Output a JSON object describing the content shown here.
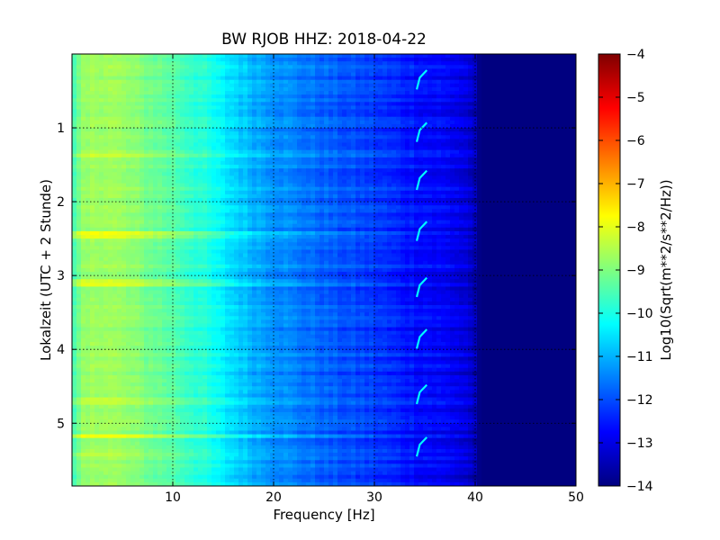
{
  "chart_data": {
    "type": "heatmap",
    "title": "BW RJOB HHZ: 2018-04-22",
    "xlabel": "Frequency [Hz]",
    "ylabel": "Lokalzeit (UTC + 2 Stunde)",
    "xlim": [
      0,
      50
    ],
    "ylim": [
      5.85,
      0.0
    ],
    "y_inverted": true,
    "x_ticks": [
      10,
      20,
      30,
      40,
      50
    ],
    "y_ticks": [
      1,
      2,
      3,
      4,
      5
    ],
    "grid": true,
    "colormap": "jet",
    "colorbar": {
      "label": "Log10(Sqrt(m**2/s**2/Hz))",
      "min": -14,
      "max": -4,
      "ticks": [
        -14,
        -13,
        -12,
        -11,
        -10,
        -9,
        -8,
        -7,
        -6,
        -5,
        -4
      ],
      "colors": [
        "#00007f",
        "#0000ff",
        "#007fff",
        "#00ffff",
        "#7fff7f",
        "#ffff00",
        "#ff7f00",
        "#ff0000",
        "#7f0000"
      ]
    },
    "value_profile_by_frequency": {
      "frequency_hz": [
        0,
        1,
        3,
        6,
        10,
        13,
        15,
        18,
        22,
        26,
        30,
        34,
        38,
        39.5,
        40.5,
        45,
        50
      ],
      "log10_amplitude": [
        -9.8,
        -8.9,
        -8.6,
        -8.9,
        -9.4,
        -9.9,
        -10.4,
        -11.0,
        -11.5,
        -11.9,
        -12.2,
        -12.6,
        -12.9,
        -13.2,
        -14.0,
        -14.0,
        -14.0
      ]
    },
    "high_energy_bands": [
      {
        "time_hours": 1.37,
        "freq_max_hz": 35,
        "log10_amplitude_boost": 0.4
      },
      {
        "time_hours": 2.46,
        "freq_max_hz": 40,
        "log10_amplitude_boost": 0.9
      },
      {
        "time_hours": 3.11,
        "freq_max_hz": 35,
        "log10_amplitude_boost": 0.7
      },
      {
        "time_hours": 4.7,
        "freq_max_hz": 25,
        "log10_amplitude_boost": 0.3
      },
      {
        "time_hours": 5.17,
        "freq_max_hz": 30,
        "log10_amplitude_boost": 0.8
      },
      {
        "time_hours": 5.42,
        "freq_max_hz": 40,
        "log10_amplitude_boost": 0.4
      }
    ],
    "recurring_chirp": {
      "frequency_hz": [
        34.2,
        35.2
      ],
      "start_times_hours": [
        0.22,
        0.93,
        1.58,
        2.27,
        3.03,
        3.73,
        4.48,
        5.19
      ]
    }
  }
}
